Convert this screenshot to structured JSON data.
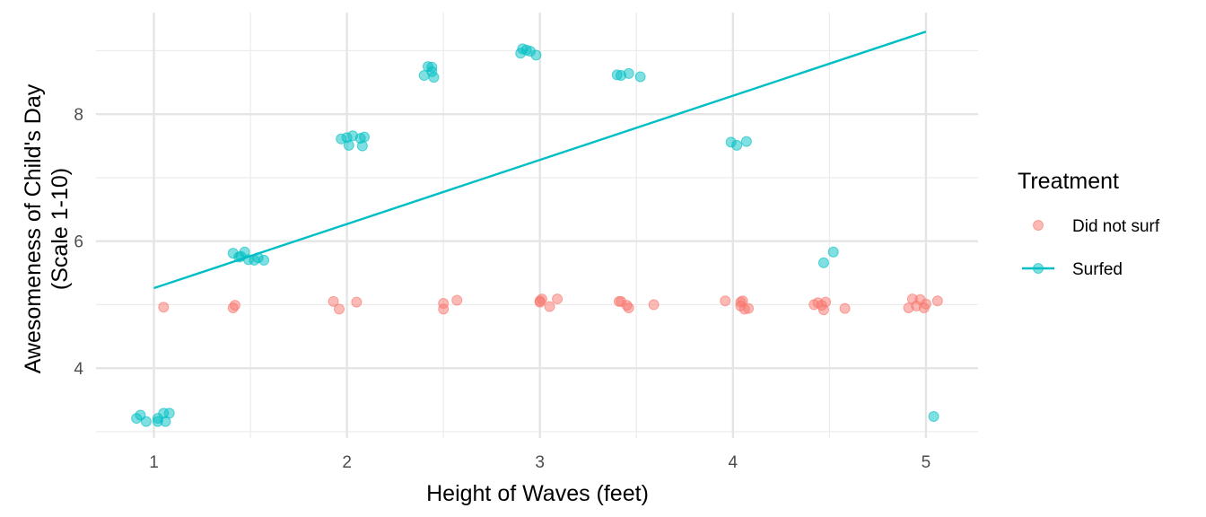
{
  "chart_data": {
    "type": "scatter",
    "xlabel": "Height of Waves (feet)",
    "ylabel_line1": "Awesomeness of Child's Day",
    "ylabel_line2": "(Scale 1-10)",
    "xlim": [
      0.7,
      5.27
    ],
    "ylim": [
      2.9,
      9.6
    ],
    "x_ticks": [
      1,
      2,
      3,
      4,
      5
    ],
    "y_ticks": [
      4,
      6,
      8
    ],
    "x_minor": [
      1.5,
      2.5,
      3.5,
      4.5
    ],
    "y_minor": [
      3,
      5,
      7,
      9
    ],
    "grid": true,
    "legend": {
      "title": "Treatment",
      "position": "right",
      "entries": [
        {
          "label": "Did not surf",
          "color": "#F8766D",
          "symbol": "point"
        },
        {
          "label": "Surfed",
          "color": "#00BFC4",
          "symbol": "point-line"
        }
      ]
    },
    "series": [
      {
        "name": "Did not surf",
        "color": "#F8766D",
        "points": [
          [
            1.05,
            4.96
          ],
          [
            1.41,
            4.95
          ],
          [
            1.42,
            4.99
          ],
          [
            1.93,
            5.05
          ],
          [
            1.96,
            4.93
          ],
          [
            2.05,
            5.04
          ],
          [
            2.5,
            5.02
          ],
          [
            2.5,
            4.93
          ],
          [
            2.57,
            5.07
          ],
          [
            3.0,
            5.04
          ],
          [
            3.01,
            5.09
          ],
          [
            3.0,
            5.06
          ],
          [
            3.05,
            4.97
          ],
          [
            3.09,
            5.09
          ],
          [
            3.41,
            5.05
          ],
          [
            3.42,
            5.05
          ],
          [
            3.45,
            4.99
          ],
          [
            3.46,
            4.95
          ],
          [
            3.59,
            5.0
          ],
          [
            3.96,
            5.06
          ],
          [
            4.04,
            5.04
          ],
          [
            4.05,
            5.06
          ],
          [
            4.04,
            4.98
          ],
          [
            4.06,
            4.93
          ],
          [
            4.08,
            4.94
          ],
          [
            4.42,
            5.0
          ],
          [
            4.44,
            5.03
          ],
          [
            4.46,
            4.99
          ],
          [
            4.47,
            4.92
          ],
          [
            4.48,
            5.04
          ],
          [
            4.58,
            4.94
          ],
          [
            4.91,
            4.95
          ],
          [
            4.93,
            5.09
          ],
          [
            4.95,
            4.98
          ],
          [
            4.97,
            5.08
          ],
          [
            4.99,
            4.95
          ],
          [
            5.0,
            5.01
          ],
          [
            5.06,
            5.06
          ]
        ]
      },
      {
        "name": "Surfed",
        "color": "#00BFC4",
        "fit_line": [
          [
            1,
            5.26
          ],
          [
            5,
            9.3
          ]
        ],
        "points": [
          [
            0.91,
            3.21
          ],
          [
            0.93,
            3.26
          ],
          [
            0.96,
            3.16
          ],
          [
            1.02,
            3.21
          ],
          [
            1.02,
            3.16
          ],
          [
            1.05,
            3.29
          ],
          [
            1.06,
            3.16
          ],
          [
            1.08,
            3.29
          ],
          [
            1.41,
            5.81
          ],
          [
            1.44,
            5.75
          ],
          [
            1.45,
            5.76
          ],
          [
            1.47,
            5.83
          ],
          [
            1.49,
            5.71
          ],
          [
            1.52,
            5.7
          ],
          [
            1.54,
            5.74
          ],
          [
            1.57,
            5.7
          ],
          [
            1.97,
            7.61
          ],
          [
            2.0,
            7.63
          ],
          [
            2.01,
            7.51
          ],
          [
            2.03,
            7.66
          ],
          [
            2.07,
            7.62
          ],
          [
            2.08,
            7.5
          ],
          [
            2.09,
            7.64
          ],
          [
            2.4,
            8.61
          ],
          [
            2.42,
            8.75
          ],
          [
            2.44,
            8.74
          ],
          [
            2.44,
            8.67
          ],
          [
            2.45,
            8.58
          ],
          [
            2.9,
            8.96
          ],
          [
            2.91,
            9.03
          ],
          [
            2.93,
            9.01
          ],
          [
            2.95,
            8.99
          ],
          [
            2.98,
            8.93
          ],
          [
            3.4,
            8.62
          ],
          [
            3.42,
            8.61
          ],
          [
            3.46,
            8.64
          ],
          [
            3.52,
            8.59
          ],
          [
            3.99,
            7.56
          ],
          [
            4.02,
            7.51
          ],
          [
            4.07,
            7.57
          ],
          [
            4.47,
            5.66
          ],
          [
            4.52,
            5.83
          ],
          [
            5.04,
            3.24
          ]
        ]
      }
    ]
  }
}
